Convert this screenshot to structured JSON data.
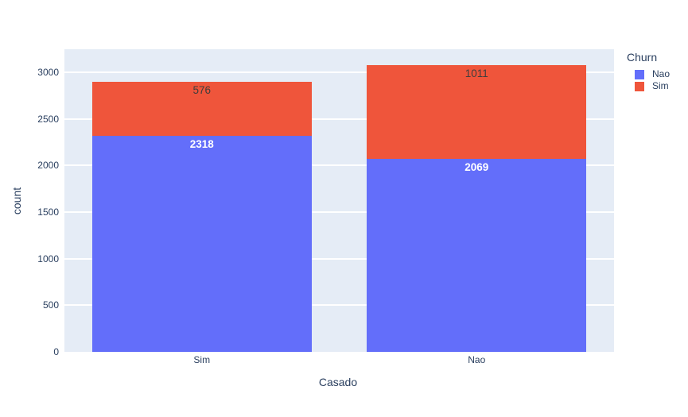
{
  "figure": {
    "background_color": "#ffffff",
    "plot_background_color": "#E5ECF6",
    "grid_color": "#ffffff",
    "text_color": "#2a3f5f",
    "legend": {
      "title": "Churn",
      "items": [
        {
          "label": "Nao",
          "color": "#636EFA"
        },
        {
          "label": "Sim",
          "color": "#EF553B"
        }
      ]
    }
  },
  "chart_data": {
    "type": "bar",
    "mode": "stacked",
    "title": "",
    "xlabel": "Casado",
    "ylabel": "count",
    "categories": [
      "Sim",
      "Nao"
    ],
    "series": [
      {
        "name": "Nao",
        "color": "#636EFA",
        "values": [
          2318,
          2069
        ],
        "label_color": "#ffffff"
      },
      {
        "name": "Sim",
        "color": "#EF553B",
        "values": [
          576,
          1011
        ],
        "label_color": "#3f3d3c"
      }
    ],
    "bar_totals": [
      2894,
      3080
    ],
    "data_labels": [
      [
        "2318",
        "2069"
      ],
      [
        "576",
        "1011"
      ]
    ],
    "yticks": [
      0,
      500,
      1000,
      1500,
      2000,
      2500,
      3000
    ],
    "ylim": [
      0,
      3247
    ],
    "grid": true,
    "legend_position": "right"
  }
}
